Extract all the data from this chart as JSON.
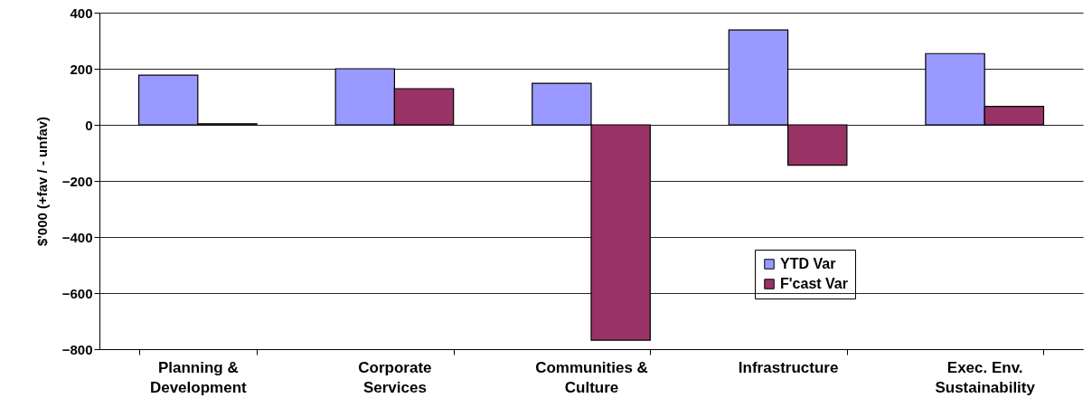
{
  "chart_data": {
    "type": "bar",
    "ylabel": "$'000 (+fav / - unfav)",
    "categories": [
      "Planning & Development",
      "Corporate Services",
      "Communities & Culture",
      "Infrastructure",
      "Exec. Env. Sustainability"
    ],
    "series": [
      {
        "name": "YTD Var",
        "color": "#9999ff",
        "values": [
          177,
          200,
          148,
          338,
          254
        ]
      },
      {
        "name": "F'cast Var",
        "color": "#993366",
        "values": [
          4,
          129,
          -768,
          -144,
          66
        ]
      }
    ],
    "ylim": [
      -800,
      400
    ],
    "yticks": [
      -800,
      -600,
      -400,
      -200,
      0,
      200,
      400
    ],
    "grid": "y",
    "legend": "bottom right"
  }
}
